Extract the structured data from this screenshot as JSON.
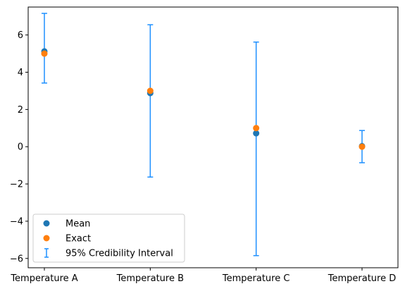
{
  "chart_data": {
    "type": "scatter",
    "title": "",
    "xlabel": "",
    "ylabel": "",
    "categories": [
      "Temperature A",
      "Temperature B",
      "Temperature C",
      "Temperature D"
    ],
    "ylim": [
      -6.5,
      7.5
    ],
    "yticks": [
      -6,
      -4,
      -2,
      0,
      2,
      4,
      6
    ],
    "ytick_labels": [
      "−6",
      "−4",
      "−2",
      "0",
      "2",
      "4",
      "6"
    ],
    "grid": false,
    "legend_position": "lower-left",
    "series": [
      {
        "name": "Mean",
        "kind": "points",
        "color": "#1f77b4",
        "values": [
          5.12,
          2.88,
          0.72,
          0.03
        ]
      },
      {
        "name": "Exact",
        "kind": "points",
        "color": "#ff7f0e",
        "values": [
          5.0,
          3.0,
          1.0,
          0.0
        ]
      },
      {
        "name": "95% Credibility Interval",
        "kind": "errorbar",
        "color": "#1e90ff",
        "lower": [
          3.42,
          -1.63,
          -5.85,
          -0.86
        ],
        "upper": [
          7.16,
          6.55,
          5.62,
          0.87
        ]
      }
    ]
  }
}
